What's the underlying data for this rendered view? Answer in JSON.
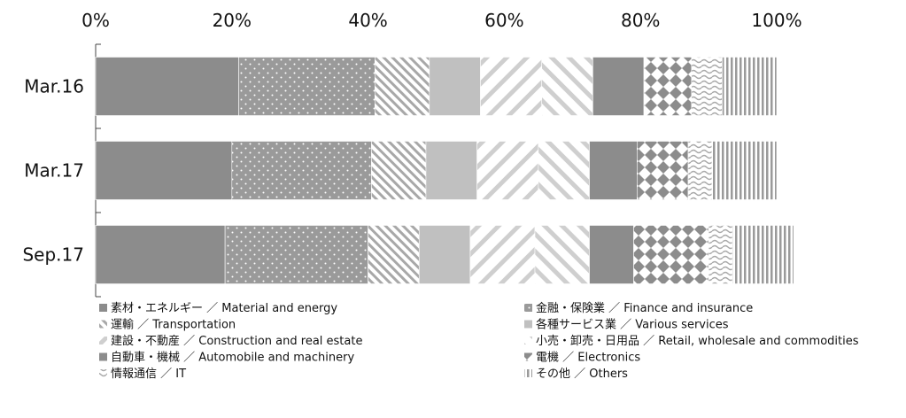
{
  "chart_data": {
    "type": "bar",
    "orientation": "horizontal",
    "stacked": "percent",
    "categories": [
      "Mar.16",
      "Mar.17",
      "Sep.17"
    ],
    "xlim": [
      0,
      100
    ],
    "xticks": [
      "0%",
      "20%",
      "40%",
      "60%",
      "80%",
      "100%"
    ],
    "grid": false,
    "legend_position": "bottom",
    "series": [
      {
        "name": "素材・エネルギー ／ Material and energy",
        "values": [
          21.0,
          20.0,
          19.0
        ],
        "color": "#8c8c8c",
        "pattern": "solid"
      },
      {
        "name": "金融・保険業 ／ Finance and insurance",
        "values": [
          20.0,
          20.5,
          21.0
        ],
        "color": "#9a9a9a",
        "pattern": "dots"
      },
      {
        "name": "運輸 ／ Transportation",
        "values": [
          8.0,
          8.0,
          7.5
        ],
        "color": "#9a9a9a",
        "pattern": "diag-fine"
      },
      {
        "name": "各種サービス業 ／ Various services",
        "values": [
          7.5,
          7.5,
          7.5
        ],
        "color": "#c0c0c0",
        "pattern": "solid"
      },
      {
        "name": "建設・不動産 ／ Construction and real estate",
        "values": [
          9.0,
          9.0,
          9.5
        ],
        "color": "#c8c8c8",
        "pattern": "diag-wide"
      },
      {
        "name": "小売・卸売・日用品 ／ Retail, wholesale and commodities",
        "values": [
          7.5,
          7.5,
          8.0
        ],
        "color": "#c8c8c8",
        "pattern": "diag-wide-rev"
      },
      {
        "name": "自動車・機械 ／ Automobile and machinery",
        "values": [
          7.5,
          7.0,
          6.5
        ],
        "color": "#8c8c8c",
        "pattern": "solid"
      },
      {
        "name": "電機 ／ Electronics",
        "values": [
          7.0,
          7.5,
          11.0
        ],
        "color": "#8c8c8c",
        "pattern": "diamonds"
      },
      {
        "name": "情報通信 ／ IT",
        "values": [
          4.5,
          3.5,
          3.5
        ],
        "color": "#9a9a9a",
        "pattern": "waves"
      },
      {
        "name": "その他 ／ Others",
        "values": [
          8.0,
          9.5,
          9.0
        ],
        "color": "#9a9a9a",
        "pattern": "vertical"
      }
    ]
  }
}
